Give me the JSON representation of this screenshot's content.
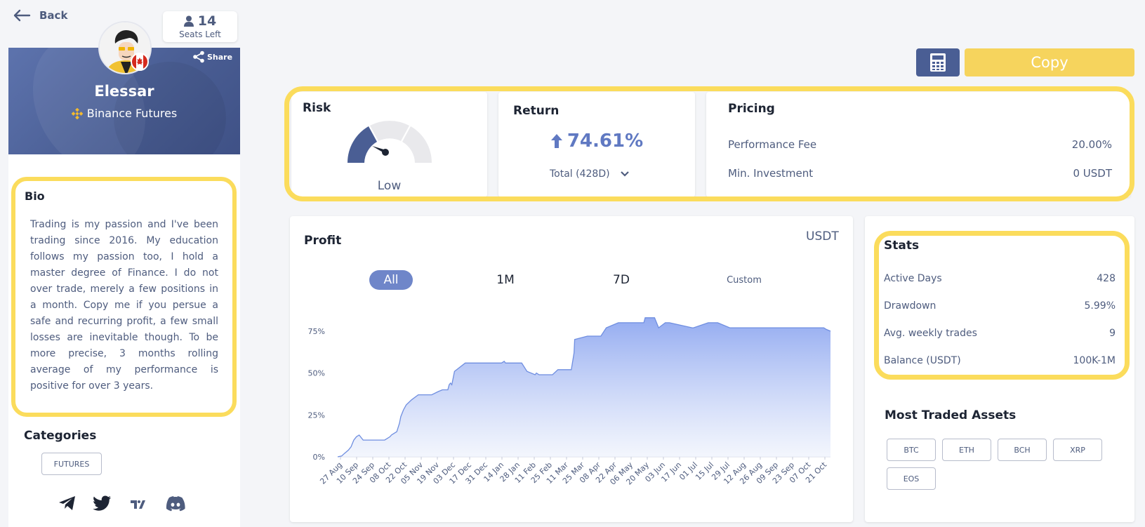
{
  "nav": {
    "back_label": "Back"
  },
  "seats": {
    "count": "14",
    "label": "Seats Left",
    "icon": "user-icon"
  },
  "profile": {
    "name": "Elessar",
    "exchange": "Binance Futures",
    "share_label": "Share",
    "flag": "Canada"
  },
  "bio": {
    "title": "Bio",
    "text": "Trading is my passion and I've been trading since 2016. My education follows my passion too, I hold a master degree of Finance. I do not over trade, merely a few positions in a month. Copy me if you persue a safe and recurring profit, a few small losses are inevitable though. To be more precise, 3 months rolling average of my performance is positive for over 3 years."
  },
  "categories": {
    "title": "Categories",
    "items": [
      "FUTURES"
    ]
  },
  "social": [
    "telegram-icon",
    "twitter-icon",
    "tradingview-icon",
    "discord-icon"
  ],
  "actions": {
    "copy_label": "Copy",
    "calculator_icon": "calculator-icon"
  },
  "risk": {
    "title": "Risk",
    "level": "Low",
    "level_value": 1,
    "level_max": 3
  },
  "return": {
    "title": "Return",
    "value": "74.61%",
    "period": "Total (428D)"
  },
  "pricing": {
    "title": "Pricing",
    "rows": [
      {
        "label": "Performance Fee",
        "value": "20.00%"
      },
      {
        "label": "Min. Investment",
        "value": "0 USDT"
      }
    ]
  },
  "profit": {
    "title": "Profit",
    "unit": "USDT",
    "ranges": [
      "All",
      "1M",
      "7D",
      "Custom"
    ],
    "active_range": "All"
  },
  "chart_data": {
    "type": "area",
    "title": "Profit",
    "ylim": [
      0,
      85
    ],
    "y_ticks": [
      "0%",
      "25%",
      "50%",
      "75%"
    ],
    "y_tick_values": [
      0,
      25,
      50,
      75
    ],
    "x_ticks": [
      "27 Aug",
      "10 Sep",
      "24 Sep",
      "08 Oct",
      "22 Oct",
      "05 Nov",
      "19 Nov",
      "03 Dec",
      "17 Dec",
      "31 Dec",
      "14 Jan",
      "28 Jan",
      "11 Feb",
      "25 Feb",
      "11 Mar",
      "25 Mar",
      "08 Apr",
      "22 Apr",
      "06 May",
      "20 May",
      "03 Jun",
      "17 Jun",
      "01 Jul",
      "15 Jul",
      "29 Jul",
      "12 Aug",
      "26 Aug",
      "09 Sep",
      "23 Sep",
      "07 Oct",
      "21 Oct"
    ],
    "x": [
      0,
      3,
      5,
      8,
      10,
      11,
      12,
      14,
      16,
      19,
      22,
      26,
      30,
      34,
      35,
      37,
      39,
      40,
      42,
      44,
      46,
      47,
      49,
      51,
      55,
      60,
      65,
      70,
      75,
      78,
      79,
      82,
      83,
      84,
      85,
      86,
      87,
      95,
      105,
      112,
      122,
      124,
      125,
      130,
      137,
      141,
      147,
      148,
      150,
      154,
      160,
      164,
      168,
      174,
      176,
      176.5,
      186,
      196,
      200,
      209,
      210,
      213,
      228,
      229,
      236,
      239,
      244,
      247,
      264,
      265,
      276,
      283,
      292,
      300,
      320,
      340,
      362,
      364,
      367
    ],
    "values": [
      0,
      0.5,
      2,
      4,
      6,
      8,
      10,
      12,
      13,
      10,
      10,
      10,
      10,
      10,
      10,
      11,
      12,
      13,
      14,
      15,
      20,
      24,
      28,
      31,
      34,
      37,
      37,
      37,
      39,
      40,
      40,
      40,
      43,
      44,
      43,
      47,
      51,
      56,
      56,
      56,
      56,
      57,
      56,
      56,
      56,
      51,
      49,
      50,
      49,
      49,
      49,
      52,
      52,
      52,
      62,
      70,
      72,
      72,
      77,
      80,
      80,
      80,
      80,
      83,
      83,
      77,
      80,
      80,
      77,
      77,
      80,
      80,
      77,
      77,
      77,
      77,
      77,
      76,
      75
    ]
  },
  "stats": {
    "title": "Stats",
    "rows": [
      {
        "label": "Active Days",
        "value": "428"
      },
      {
        "label": "Drawdown",
        "value": "5.99%"
      },
      {
        "label": "Avg. weekly trades",
        "value": "9"
      },
      {
        "label": "Balance (USDT)",
        "value": "100K-1M"
      }
    ]
  },
  "assets": {
    "title": "Most Traded Assets",
    "items": [
      "BTC",
      "ETH",
      "BCH",
      "XRP",
      "EOS"
    ]
  },
  "colors": {
    "accent": "#4a5e94",
    "highlight": "#fbdc5c",
    "copy": "#f6d45d",
    "chart_fill": "#8ea7f0",
    "return": "#6079c2"
  }
}
